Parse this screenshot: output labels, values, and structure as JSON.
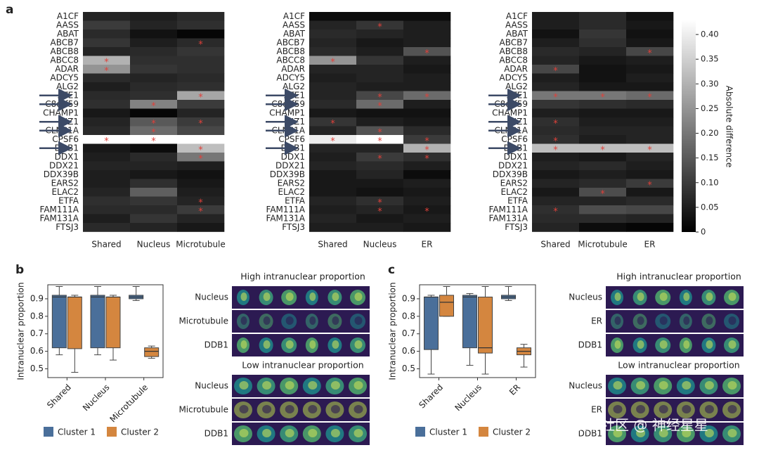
{
  "chart_data": [
    {
      "type": "heatmap",
      "panel_label": "a",
      "rows": [
        "A1CF",
        "AASS",
        "ABAT",
        "ABCB7",
        "ABCB8",
        "ABCC8",
        "ADAR",
        "ADCY5",
        "ALG2",
        "ATE1",
        "C8orf59",
        "CHAMP1",
        "CIZ1",
        "CLNS1A",
        "CPSF6",
        "DDB1",
        "DDX1",
        "DDX21",
        "DDX39B",
        "EARS2",
        "ELAC2",
        "ETFA",
        "FAM111A",
        "FAM131A",
        "FTSJ3"
      ],
      "columns": [
        "Shared",
        "Nucleus",
        "Microtubule"
      ],
      "values": [
        [
          0.06,
          0.05,
          0.07
        ],
        [
          0.1,
          0.06,
          0.08
        ],
        [
          0.07,
          0.03,
          0.01
        ],
        [
          0.09,
          0.05,
          0.07
        ],
        [
          0.06,
          0.07,
          0.09
        ],
        [
          0.3,
          0.08,
          0.08
        ],
        [
          0.25,
          0.09,
          0.08
        ],
        [
          0.07,
          0.06,
          0.07
        ],
        [
          0.05,
          0.07,
          0.08
        ],
        [
          0.07,
          0.08,
          0.28
        ],
        [
          0.08,
          0.22,
          0.1
        ],
        [
          0.04,
          0.01,
          0.06
        ],
        [
          0.06,
          0.15,
          0.1
        ],
        [
          0.07,
          0.18,
          0.12
        ],
        [
          0.43,
          0.43,
          0.43
        ],
        [
          0.04,
          0.02,
          0.32
        ],
        [
          0.05,
          0.07,
          0.2
        ],
        [
          0.06,
          0.06,
          0.05
        ],
        [
          0.05,
          0.04,
          0.03
        ],
        [
          0.05,
          0.08,
          0.04
        ],
        [
          0.06,
          0.16,
          0.05
        ],
        [
          0.08,
          0.09,
          0.06
        ],
        [
          0.07,
          0.07,
          0.1
        ],
        [
          0.05,
          0.09,
          0.06
        ],
        [
          0.07,
          0.06,
          0.04
        ]
      ],
      "significant": [
        [
          3,
          2
        ],
        [
          5,
          0
        ],
        [
          6,
          0
        ],
        [
          9,
          2
        ],
        [
          10,
          1
        ],
        [
          12,
          1
        ],
        [
          12,
          2
        ],
        [
          13,
          1
        ],
        [
          14,
          0
        ],
        [
          14,
          1
        ],
        [
          15,
          2
        ],
        [
          16,
          2
        ],
        [
          21,
          2
        ],
        [
          22,
          2
        ]
      ],
      "marker": "*",
      "highlighted_rows": [
        9,
        10,
        12,
        13,
        15
      ]
    },
    {
      "type": "heatmap",
      "rows": [
        "A1CF",
        "AASS",
        "ABAT",
        "ABCB7",
        "ABCB8",
        "ABCC8",
        "ADAR",
        "ADCY5",
        "ALG2",
        "ATE1",
        "C8orf59",
        "CHAMP1",
        "CIZ1",
        "CLNS1A",
        "CPSF6",
        "DDB1",
        "DDX1",
        "DDX21",
        "DDX39B",
        "EARS2",
        "ELAC2",
        "ETFA",
        "FAM111A",
        "FAM131A",
        "FTSJ3"
      ],
      "columns": [
        "Shared",
        "Nucleus",
        "ER"
      ],
      "values": [
        [
          0.02,
          0.02,
          0.02
        ],
        [
          0.06,
          0.09,
          0.05
        ],
        [
          0.07,
          0.06,
          0.05
        ],
        [
          0.06,
          0.04,
          0.05
        ],
        [
          0.07,
          0.05,
          0.14
        ],
        [
          0.25,
          0.09,
          0.05
        ],
        [
          0.06,
          0.06,
          0.04
        ],
        [
          0.05,
          0.06,
          0.05
        ],
        [
          0.06,
          0.05,
          0.05
        ],
        [
          0.06,
          0.12,
          0.18
        ],
        [
          0.07,
          0.18,
          0.05
        ],
        [
          0.04,
          0.03,
          0.03
        ],
        [
          0.09,
          0.05,
          0.04
        ],
        [
          0.06,
          0.14,
          0.07
        ],
        [
          0.4,
          0.43,
          0.1
        ],
        [
          0.06,
          0.06,
          0.3
        ],
        [
          0.05,
          0.1,
          0.08
        ],
        [
          0.06,
          0.07,
          0.05
        ],
        [
          0.04,
          0.06,
          0.02
        ],
        [
          0.04,
          0.04,
          0.05
        ],
        [
          0.04,
          0.03,
          0.04
        ],
        [
          0.06,
          0.08,
          0.05
        ],
        [
          0.05,
          0.06,
          0.04
        ],
        [
          0.06,
          0.04,
          0.05
        ],
        [
          0.05,
          0.05,
          0.04
        ]
      ],
      "significant": [
        [
          1,
          1
        ],
        [
          4,
          2
        ],
        [
          5,
          0
        ],
        [
          9,
          1
        ],
        [
          9,
          2
        ],
        [
          10,
          1
        ],
        [
          12,
          0
        ],
        [
          13,
          1
        ],
        [
          14,
          0
        ],
        [
          14,
          1
        ],
        [
          14,
          2
        ],
        [
          15,
          2
        ],
        [
          16,
          1
        ],
        [
          16,
          2
        ],
        [
          21,
          1
        ],
        [
          22,
          1
        ],
        [
          22,
          2
        ]
      ],
      "marker": "*",
      "highlighted_rows": [
        9,
        10,
        12,
        13,
        15
      ]
    },
    {
      "type": "heatmap",
      "rows": [
        "A1CF",
        "AASS",
        "ABAT",
        "ABCB7",
        "ABCB8",
        "ABCC8",
        "ADAR",
        "ADCY5",
        "ALG2",
        "ATE1",
        "C8orf59",
        "CHAMP1",
        "CIZ1",
        "CLNS1A",
        "CPSF6",
        "DDB1",
        "DDX1",
        "DDX21",
        "DDX39B",
        "EARS2",
        "ELAC2",
        "ETFA",
        "FAM111A",
        "FAM131A",
        "FTSJ3"
      ],
      "columns": [
        "Shared",
        "Microtubule",
        "ER"
      ],
      "values": [
        [
          0.05,
          0.07,
          0.03
        ],
        [
          0.05,
          0.07,
          0.04
        ],
        [
          0.03,
          0.09,
          0.03
        ],
        [
          0.05,
          0.08,
          0.04
        ],
        [
          0.07,
          0.06,
          0.12
        ],
        [
          0.06,
          0.04,
          0.05
        ],
        [
          0.12,
          0.03,
          0.04
        ],
        [
          0.05,
          0.03,
          0.05
        ],
        [
          0.06,
          0.04,
          0.04
        ],
        [
          0.2,
          0.2,
          0.18
        ],
        [
          0.09,
          0.08,
          0.07
        ],
        [
          0.05,
          0.04,
          0.04
        ],
        [
          0.08,
          0.05,
          0.05
        ],
        [
          0.07,
          0.06,
          0.06
        ],
        [
          0.08,
          0.05,
          0.06
        ],
        [
          0.32,
          0.32,
          0.32
        ],
        [
          0.05,
          0.04,
          0.06
        ],
        [
          0.06,
          0.07,
          0.05
        ],
        [
          0.04,
          0.05,
          0.04
        ],
        [
          0.06,
          0.07,
          0.1
        ],
        [
          0.04,
          0.13,
          0.04
        ],
        [
          0.06,
          0.06,
          0.07
        ],
        [
          0.08,
          0.13,
          0.12
        ],
        [
          0.07,
          0.07,
          0.06
        ],
        [
          0.06,
          0.02,
          0.01
        ]
      ],
      "significant": [
        [
          4,
          2
        ],
        [
          6,
          0
        ],
        [
          9,
          0
        ],
        [
          9,
          1
        ],
        [
          9,
          2
        ],
        [
          12,
          0
        ],
        [
          14,
          0
        ],
        [
          15,
          0
        ],
        [
          15,
          1
        ],
        [
          15,
          2
        ],
        [
          19,
          2
        ],
        [
          20,
          1
        ],
        [
          22,
          0
        ]
      ],
      "marker": "*",
      "highlighted_rows": [
        9,
        10,
        12,
        13,
        15
      ],
      "colorbar": {
        "label": "Absolute difference",
        "lim": [
          0,
          0.43
        ],
        "ticks": [
          0,
          0.05,
          {
            "value": 0.1,
            "label": "0.10"
          },
          0.15,
          {
            "value": 0.2,
            "label": "0.20"
          },
          0.25,
          {
            "value": 0.3,
            "label": "0.30"
          },
          0.35,
          {
            "value": 0.4,
            "label": "0.40"
          }
        ]
      }
    },
    {
      "type": "box",
      "panel_label": "b",
      "y_label": "Intranuclear proportion",
      "categories": [
        "Shared",
        "Nucleus",
        "Microtubule"
      ],
      "ylim": [
        0.45,
        0.98
      ],
      "yticks": [
        0.5,
        0.6,
        0.7,
        0.8,
        0.9
      ],
      "series": [
        {
          "name": "Cluster 1",
          "color": "#4a6f9a",
          "min": [
            0.58,
            0.58,
            0.89
          ],
          "q1": [
            0.62,
            0.62,
            0.9
          ],
          "median": [
            0.91,
            0.91,
            0.91
          ],
          "q3": [
            0.92,
            0.92,
            0.92
          ],
          "max": [
            0.97,
            0.97,
            0.97
          ]
        },
        {
          "name": "Cluster 2",
          "color": "#d4863f",
          "min": [
            0.48,
            0.55,
            0.56
          ],
          "q1": [
            0.615,
            0.62,
            0.57
          ],
          "median": [
            0.91,
            0.91,
            0.6
          ],
          "q3": [
            0.91,
            0.91,
            0.62
          ],
          "max": [
            0.92,
            0.92,
            0.63
          ]
        }
      ]
    },
    {
      "type": "box",
      "panel_label": "c",
      "y_label": "Intranuclear proportion",
      "categories": [
        "Shared",
        "Nucleus",
        "ER"
      ],
      "ylim": [
        0.45,
        0.98
      ],
      "yticks": [
        0.5,
        0.6,
        0.7,
        0.8,
        0.9
      ],
      "series": [
        {
          "name": "Cluster 1",
          "color": "#4a6f9a",
          "min": [
            0.47,
            0.52,
            0.89
          ],
          "q1": [
            0.61,
            0.62,
            0.9
          ],
          "median": [
            0.91,
            0.91,
            0.91
          ],
          "q3": [
            0.91,
            0.92,
            0.92
          ],
          "max": [
            0.92,
            0.93,
            0.97
          ]
        },
        {
          "name": "Cluster 2",
          "color": "#d4863f",
          "min": [
            0.8,
            0.47,
            0.51
          ],
          "q1": [
            0.8,
            0.59,
            0.58
          ],
          "median": [
            0.88,
            0.62,
            0.6
          ],
          "q3": [
            0.92,
            0.91,
            0.62
          ],
          "max": [
            0.97,
            0.97,
            0.64
          ]
        }
      ]
    }
  ],
  "image_panels": [
    {
      "high_title": "High intranuclear proportion",
      "low_title": "Low intranuclear proportion",
      "channels": [
        "Nucleus",
        "Microtubule",
        "DDB1"
      ]
    },
    {
      "high_title": "High intranuclear proportion",
      "low_title": "Low intranuclear proportion",
      "channels": [
        "Nucleus",
        "ER",
        "DDB1"
      ]
    }
  ],
  "watermark": "掘金技术社区 @ 神经星星"
}
